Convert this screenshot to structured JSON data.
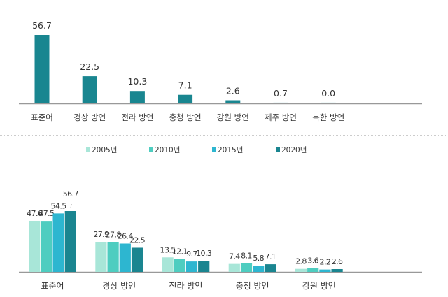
{
  "chart_data": [
    {
      "type": "bar",
      "categories": [
        "표준어",
        "경상 방언",
        "전라 방언",
        "충청 방언",
        "강원 방언",
        "제주 방언",
        "북한 방언"
      ],
      "values": [
        56.7,
        22.5,
        10.3,
        7.1,
        2.6,
        0.7,
        0.0
      ],
      "data_labels": [
        "56.7",
        "22.5",
        "10.3",
        "7.1",
        "2.6",
        "0.7",
        "0.0"
      ],
      "color": "#198690",
      "ylim": [
        0,
        60
      ],
      "grid": false
    },
    {
      "type": "bar",
      "categories": [
        "표준어",
        "경상 방언",
        "전라 방언",
        "충청 방언",
        "강원 방언"
      ],
      "series": [
        {
          "name": "2005년",
          "color": "#a8e6d8",
          "values": [
            47.6,
            27.9,
            13.5,
            7.4,
            2.8
          ]
        },
        {
          "name": "2010년",
          "color": "#4ecdc0",
          "values": [
            47.5,
            27.8,
            12.1,
            8.1,
            3.6
          ]
        },
        {
          "name": "2015년",
          "color": "#2db6d0",
          "values": [
            54.5,
            26.4,
            9.7,
            5.8,
            2.2
          ]
        },
        {
          "name": "2020년",
          "color": "#1a8590",
          "values": [
            56.7,
            22.5,
            10.3,
            7.1,
            2.6
          ]
        }
      ],
      "legend_position": "top",
      "ylim": [
        0,
        60
      ],
      "grid": false
    }
  ]
}
